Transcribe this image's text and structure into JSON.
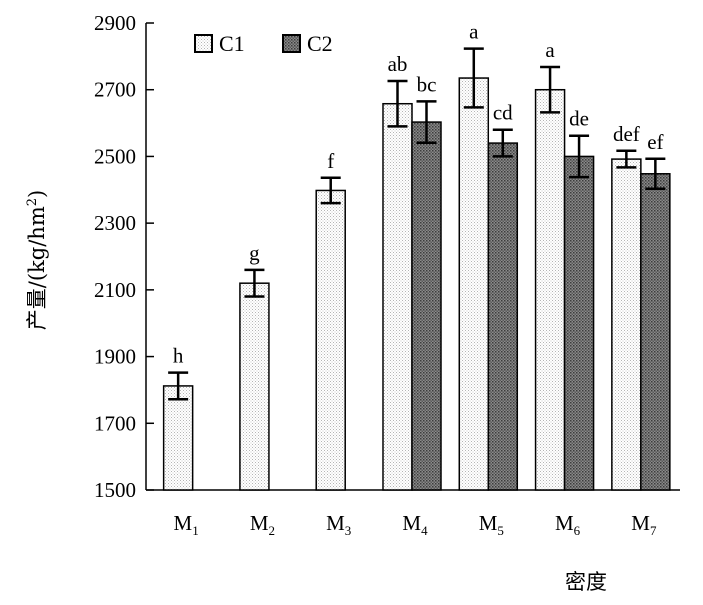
{
  "chart_data": {
    "type": "bar",
    "title": "",
    "xlabel": "密度",
    "ylabel": "产量/(kg/hm²)",
    "ylabel_parts": {
      "prefix": "产量/(kg/hm",
      "sup": "2",
      "suffix": ")"
    },
    "ylim": [
      1500,
      2900
    ],
    "yticks": [
      1500,
      1700,
      1900,
      2100,
      2300,
      2500,
      2700,
      2900
    ],
    "grid": false,
    "legend_position": "top-left",
    "categories": [
      {
        "base": "M",
        "sub": "1"
      },
      {
        "base": "M",
        "sub": "2"
      },
      {
        "base": "M",
        "sub": "3"
      },
      {
        "base": "M",
        "sub": "4"
      },
      {
        "base": "M",
        "sub": "5"
      },
      {
        "base": "M",
        "sub": "6"
      },
      {
        "base": "M",
        "sub": "7"
      }
    ],
    "series": [
      {
        "name": "C1",
        "fill": "#f4f4f4",
        "values": [
          1812,
          2120,
          2398,
          2658,
          2735,
          2700,
          2492
        ],
        "errors": [
          40,
          40,
          38,
          68,
          88,
          68,
          25
        ],
        "labels": [
          "h",
          "g",
          "f",
          "ab",
          "a",
          "a",
          "def"
        ]
      },
      {
        "name": "C2",
        "fill": "#7a7a7a",
        "values": [
          null,
          null,
          null,
          2603,
          2540,
          2500,
          2448
        ],
        "errors": [
          null,
          null,
          null,
          62,
          40,
          62,
          45
        ],
        "labels": [
          "",
          "",
          "",
          "bc",
          "cd",
          "de",
          "ef"
        ]
      }
    ]
  }
}
